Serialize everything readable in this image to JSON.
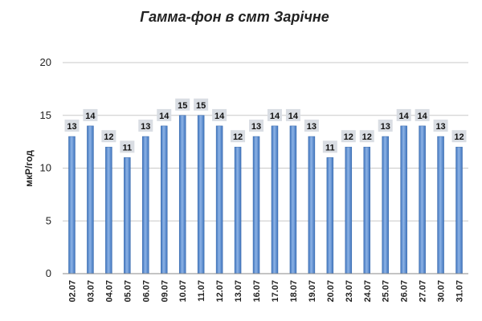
{
  "chart_data": {
    "type": "bar",
    "title": "Гамма-фон в смт Зарічне",
    "ylabel": "мкР/год",
    "xlabel": "",
    "ylim": [
      0,
      20
    ],
    "yticks": [
      "0",
      "5",
      "10",
      "15",
      "20"
    ],
    "grid": true,
    "bar_color": "#5b8fd0",
    "label_box_color": "#d9dde3",
    "categories": [
      "02.07",
      "03.07",
      "04.07",
      "05.07",
      "06.07",
      "09.07",
      "10.07",
      "11.07",
      "12.07",
      "13.07",
      "16.07",
      "17.07",
      "18.07",
      "19.07",
      "20.07",
      "23.07",
      "24.07",
      "25.07",
      "26.07",
      "27.07",
      "30.07",
      "31.07"
    ],
    "values": [
      13,
      14,
      12,
      11,
      13,
      14,
      15,
      15,
      14,
      12,
      13,
      14,
      14,
      13,
      11,
      12,
      12,
      13,
      14,
      14,
      13,
      12
    ],
    "data_labels": [
      "13",
      "14",
      "12",
      "11",
      "13",
      "14",
      "15",
      "15",
      "14",
      "12",
      "13",
      "14",
      "14",
      "13",
      "11",
      "12",
      "12",
      "13",
      "14",
      "14",
      "13",
      "12"
    ]
  }
}
